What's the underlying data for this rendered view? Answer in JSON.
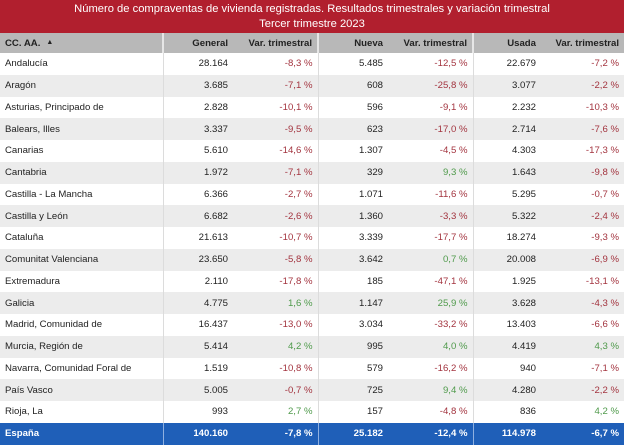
{
  "title": {
    "line1": "Número de compraventas de vivienda registradas. Resultados trimestrales  y variación trimestral",
    "line2": "Tercer trimestre 2023"
  },
  "colors": {
    "title_band": "#b11f2e",
    "header": "#b8b8b8",
    "footer": "#1f5fb8",
    "negative": "#a3343f",
    "positive": "#4f9a4b"
  },
  "headers": {
    "region": "CC. AA.",
    "sort_icon": "▲",
    "general": "General",
    "general_var": "Var. trimestral",
    "nueva": "Nueva",
    "nueva_var": "Var. trimestral",
    "usada": "Usada",
    "usada_var": "Var. trimestral"
  },
  "rows": [
    {
      "region": "Andalucía",
      "general": "28.164",
      "general_var": "-8,3 %",
      "nueva": "5.485",
      "nueva_var": "-12,5 %",
      "usada": "22.679",
      "usada_var": "-7,2 %"
    },
    {
      "region": "Aragón",
      "general": "3.685",
      "general_var": "-7,1 %",
      "nueva": "608",
      "nueva_var": "-25,8 %",
      "usada": "3.077",
      "usada_var": "-2,2 %"
    },
    {
      "region": "Asturias, Principado de",
      "general": "2.828",
      "general_var": "-10,1 %",
      "nueva": "596",
      "nueva_var": "-9,1 %",
      "usada": "2.232",
      "usada_var": "-10,3 %"
    },
    {
      "region": "Balears, Illes",
      "general": "3.337",
      "general_var": "-9,5 %",
      "nueva": "623",
      "nueva_var": "-17,0 %",
      "usada": "2.714",
      "usada_var": "-7,6 %"
    },
    {
      "region": "Canarias",
      "general": "5.610",
      "general_var": "-14,6 %",
      "nueva": "1.307",
      "nueva_var": "-4,5 %",
      "usada": "4.303",
      "usada_var": "-17,3 %"
    },
    {
      "region": "Cantabria",
      "general": "1.972",
      "general_var": "-7,1 %",
      "nueva": "329",
      "nueva_var": "9,3 %",
      "usada": "1.643",
      "usada_var": "-9,8 %"
    },
    {
      "region": "Castilla - La Mancha",
      "general": "6.366",
      "general_var": "-2,7 %",
      "nueva": "1.071",
      "nueva_var": "-11,6 %",
      "usada": "5.295",
      "usada_var": "-0,7 %"
    },
    {
      "region": "Castilla y León",
      "general": "6.682",
      "general_var": "-2,6 %",
      "nueva": "1.360",
      "nueva_var": "-3,3 %",
      "usada": "5.322",
      "usada_var": "-2,4 %"
    },
    {
      "region": "Cataluña",
      "general": "21.613",
      "general_var": "-10,7 %",
      "nueva": "3.339",
      "nueva_var": "-17,7 %",
      "usada": "18.274",
      "usada_var": "-9,3 %"
    },
    {
      "region": "Comunitat Valenciana",
      "general": "23.650",
      "general_var": "-5,8 %",
      "nueva": "3.642",
      "nueva_var": "0,7 %",
      "usada": "20.008",
      "usada_var": "-6,9 %"
    },
    {
      "region": "Extremadura",
      "general": "2.110",
      "general_var": "-17,8 %",
      "nueva": "185",
      "nueva_var": "-47,1 %",
      "usada": "1.925",
      "usada_var": "-13,1 %"
    },
    {
      "region": "Galicia",
      "general": "4.775",
      "general_var": "1,6 %",
      "nueva": "1.147",
      "nueva_var": "25,9 %",
      "usada": "3.628",
      "usada_var": "-4,3 %"
    },
    {
      "region": "Madrid, Comunidad de",
      "general": "16.437",
      "general_var": "-13,0 %",
      "nueva": "3.034",
      "nueva_var": "-33,2 %",
      "usada": "13.403",
      "usada_var": "-6,6 %"
    },
    {
      "region": "Murcia, Región de",
      "general": "5.414",
      "general_var": "4,2 %",
      "nueva": "995",
      "nueva_var": "4,0 %",
      "usada": "4.419",
      "usada_var": "4,3 %"
    },
    {
      "region": "Navarra, Comunidad Foral de",
      "general": "1.519",
      "general_var": "-10,8 %",
      "nueva": "579",
      "nueva_var": "-16,2 %",
      "usada": "940",
      "usada_var": "-7,1 %"
    },
    {
      "region": "País Vasco",
      "general": "5.005",
      "general_var": "-0,7 %",
      "nueva": "725",
      "nueva_var": "9,4 %",
      "usada": "4.280",
      "usada_var": "-2,2 %"
    },
    {
      "region": "Rioja, La",
      "general": "993",
      "general_var": "2,7 %",
      "nueva": "157",
      "nueva_var": "-4,8 %",
      "usada": "836",
      "usada_var": "4,2 %"
    }
  ],
  "total": {
    "region": "España",
    "general": "140.160",
    "general_var": "-7,8 %",
    "nueva": "25.182",
    "nueva_var": "-12,4 %",
    "usada": "114.978",
    "usada_var": "-6,7 %"
  }
}
